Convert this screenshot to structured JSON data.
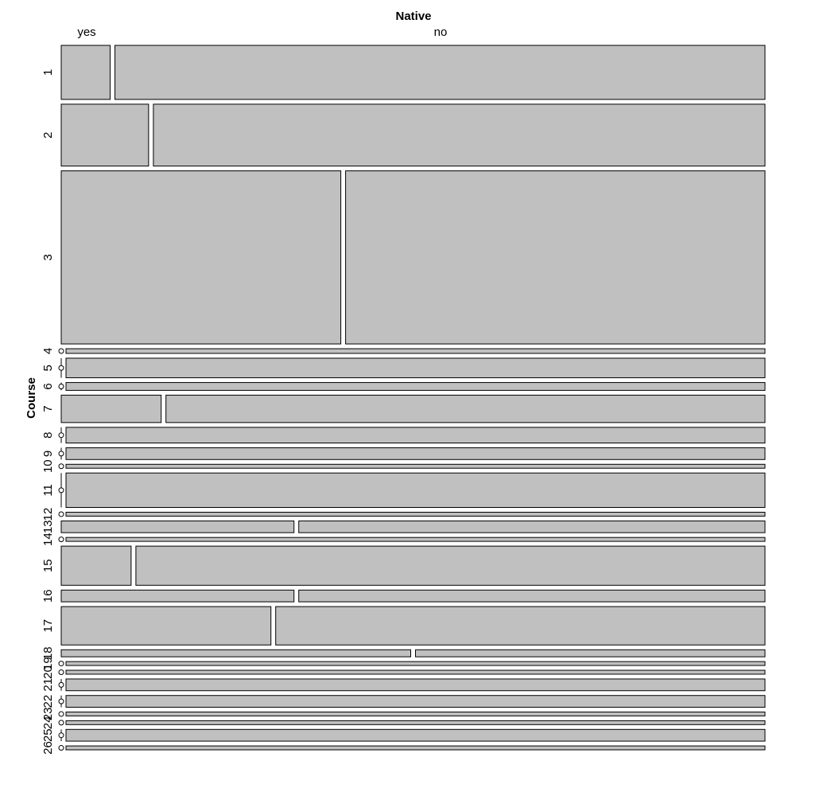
{
  "chart_data": {
    "type": "mosaic",
    "x_variable": "Native",
    "y_variable": "Course",
    "x_categories": [
      "yes",
      "no"
    ],
    "colors": {
      "tile_fill": "#c0c0c0",
      "tile_stroke": "#000000"
    },
    "rows": [
      {
        "course": "1",
        "weight": 69,
        "yes_fraction": 0.07
      },
      {
        "course": "2",
        "weight": 79,
        "yes_fraction": 0.125
      },
      {
        "course": "3",
        "weight": 221,
        "yes_fraction": 0.4
      },
      {
        "course": "4",
        "weight": 6,
        "yes_fraction": 0
      },
      {
        "course": "5",
        "weight": 25,
        "yes_fraction": 0
      },
      {
        "course": "6",
        "weight": 10,
        "yes_fraction": 0
      },
      {
        "course": "7",
        "weight": 35,
        "yes_fraction": 0.143
      },
      {
        "course": "8",
        "weight": 20,
        "yes_fraction": 0
      },
      {
        "course": "9",
        "weight": 15,
        "yes_fraction": 0
      },
      {
        "course": "10",
        "weight": 5,
        "yes_fraction": 0
      },
      {
        "course": "11",
        "weight": 44,
        "yes_fraction": 0
      },
      {
        "course": "12",
        "weight": 5,
        "yes_fraction": 0
      },
      {
        "course": "13",
        "weight": 15,
        "yes_fraction": 0.333
      },
      {
        "course": "14",
        "weight": 5,
        "yes_fraction": 0
      },
      {
        "course": "15",
        "weight": 50,
        "yes_fraction": 0.1
      },
      {
        "course": "16",
        "weight": 15,
        "yes_fraction": 0.333
      },
      {
        "course": "17",
        "weight": 49,
        "yes_fraction": 0.3
      },
      {
        "course": "18",
        "weight": 9,
        "yes_fraction": 0.5
      },
      {
        "course": "19",
        "weight": 5,
        "yes_fraction": 0
      },
      {
        "course": "20",
        "weight": 5,
        "yes_fraction": 0
      },
      {
        "course": "21",
        "weight": 15,
        "yes_fraction": 0
      },
      {
        "course": "22",
        "weight": 15,
        "yes_fraction": 0
      },
      {
        "course": "23",
        "weight": 5,
        "yes_fraction": 0
      },
      {
        "course": "24",
        "weight": 5,
        "yes_fraction": 0
      },
      {
        "course": "25",
        "weight": 15,
        "yes_fraction": 0
      },
      {
        "course": "26",
        "weight": 5,
        "yes_fraction": 0
      }
    ]
  }
}
